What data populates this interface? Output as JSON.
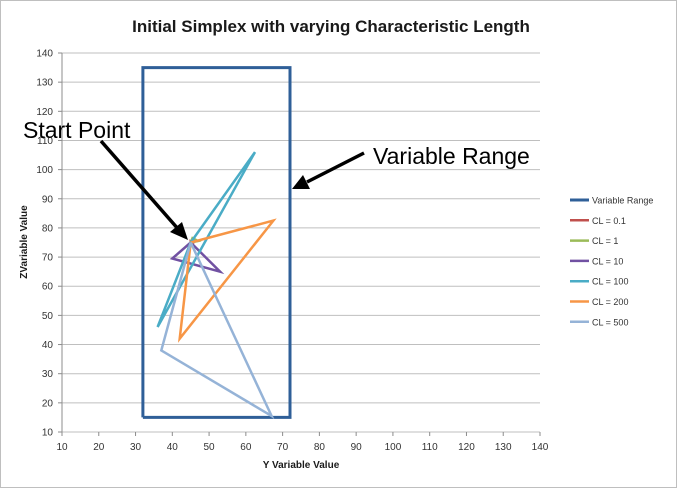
{
  "chart_data": {
    "type": "scatter",
    "title": "Initial Simplex with varying Characteristic Length",
    "xlabel": "Y Variable Value",
    "ylabel": "ZVariable Value",
    "xlim": [
      10,
      140
    ],
    "ylim": [
      10,
      140
    ],
    "xticks": [
      10,
      20,
      30,
      40,
      50,
      60,
      70,
      80,
      90,
      100,
      110,
      120,
      130,
      140
    ],
    "yticks": [
      10,
      20,
      30,
      40,
      50,
      60,
      70,
      80,
      90,
      100,
      110,
      120,
      130,
      140
    ],
    "grid": "horizontal",
    "legend_position": "right",
    "series": [
      {
        "name": "Variable Range",
        "color": "#2f5f98",
        "x": [
          32,
          72,
          72,
          32,
          32
        ],
        "y": [
          15,
          15,
          135,
          135,
          15
        ]
      },
      {
        "name": "CL = 0.1",
        "color": "#c0504d",
        "x": [
          45,
          45.2,
          45,
          45
        ],
        "y": [
          75,
          75,
          75.2,
          75
        ]
      },
      {
        "name": "CL = 1",
        "color": "#9bbb59",
        "x": [
          45,
          47,
          45.5,
          45
        ],
        "y": [
          75,
          75.5,
          76.5,
          75
        ]
      },
      {
        "name": "CL = 10",
        "color": "#7151a2",
        "x": [
          45,
          40,
          53,
          45
        ],
        "y": [
          75,
          69.5,
          65,
          75
        ]
      },
      {
        "name": "CL = 100",
        "color": "#4aacc6",
        "x": [
          45,
          36,
          62.5,
          45
        ],
        "y": [
          75,
          46,
          106,
          75
        ]
      },
      {
        "name": "CL = 200",
        "color": "#f79646",
        "x": [
          45,
          42,
          67.5,
          45
        ],
        "y": [
          75,
          42,
          82.5,
          75
        ]
      },
      {
        "name": "CL = 500",
        "color": "#95b3d7",
        "x": [
          45,
          37,
          67,
          45
        ],
        "y": [
          75,
          38,
          15.5,
          75
        ]
      }
    ],
    "annotations": [
      {
        "text": "Start Point"
      },
      {
        "text": "Variable Range"
      }
    ]
  }
}
